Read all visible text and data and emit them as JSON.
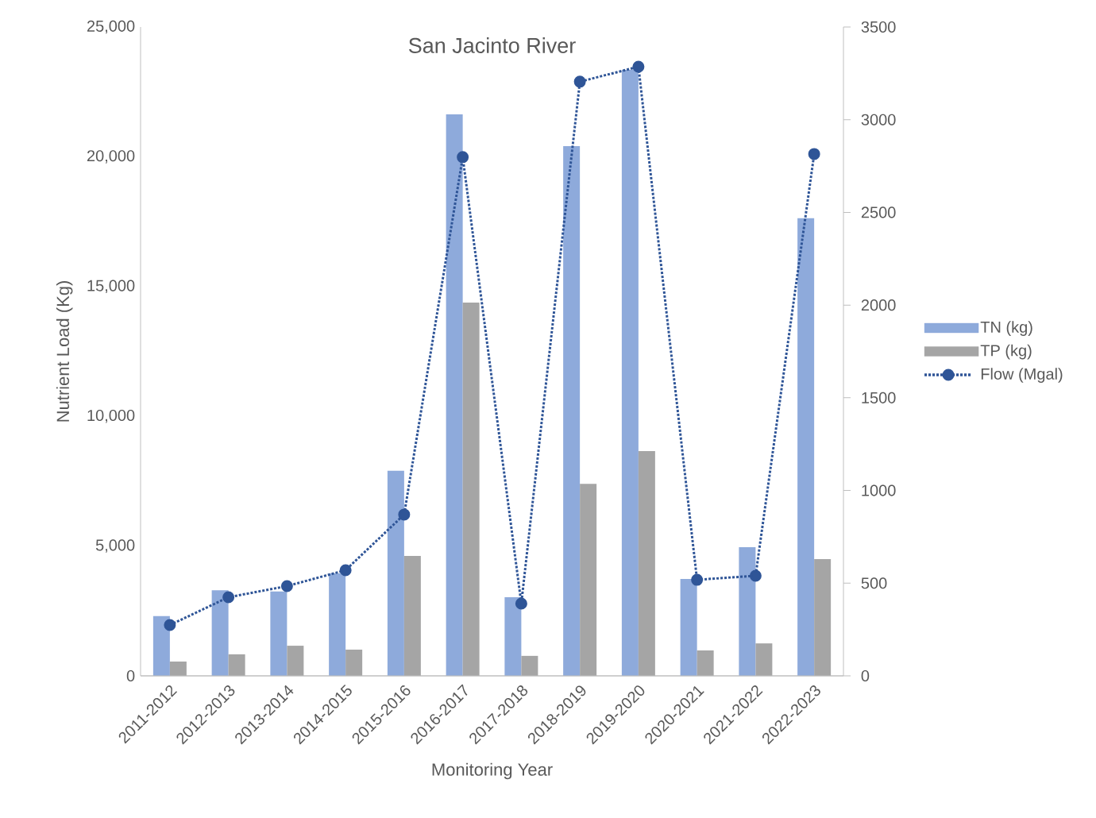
{
  "chart_data": {
    "type": "bar",
    "title": "San Jacinto River",
    "xlabel": "Monitoring Year",
    "ylabel": "Nutrient Load (Kg)",
    "categories": [
      "2011-2012",
      "2012-2013",
      "2013-2014",
      "2014-2015",
      "2015-2016",
      "2016-2017",
      "2017-2018",
      "2018-2019",
      "2019-2020",
      "2020-2021",
      "2021-2022",
      "2022-2023"
    ],
    "series": [
      {
        "name": "TN (kg)",
        "color": "#8eaadb",
        "values": [
          2300,
          3300,
          3250,
          3950,
          7900,
          21630,
          3030,
          20410,
          23350,
          3730,
          4960,
          17630
        ]
      },
      {
        "name": "TP (kg)",
        "color": "#a5a5a5",
        "values": [
          550,
          830,
          1160,
          1010,
          4620,
          14380,
          770,
          7400,
          8660,
          980,
          1250,
          4500
        ]
      },
      {
        "name": "Flow (Mgal)",
        "type": "line",
        "axis": "y2",
        "color": "#2f5597",
        "marker": "circle",
        "line_style": "dotted",
        "values": [
          274,
          424,
          484,
          570,
          870,
          2798,
          390,
          3205,
          3286,
          518,
          540,
          2815
        ]
      }
    ],
    "ylim": [
      0,
      25000
    ],
    "yticks": [
      0,
      {
        "value": 5000,
        "label": "5,000"
      },
      {
        "value": 10000,
        "label": "10,000"
      },
      {
        "value": 15000,
        "label": "15,000"
      },
      {
        "value": 20000,
        "label": "20,000"
      },
      {
        "value": 25000,
        "label": "25,000"
      }
    ],
    "y2lim": [
      0,
      3500
    ],
    "y2ticks": [
      0,
      500,
      1000,
      1500,
      2000,
      2500,
      3000,
      3500
    ],
    "legend": "right"
  }
}
